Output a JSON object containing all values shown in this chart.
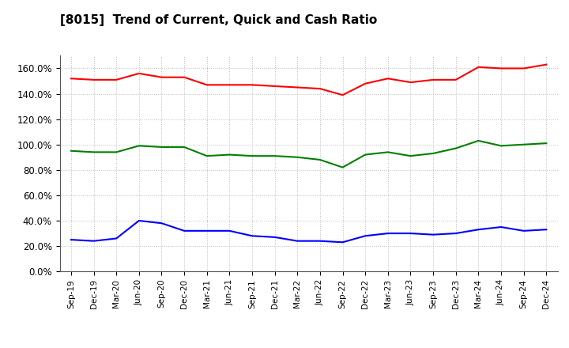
{
  "title": "[8015]  Trend of Current, Quick and Cash Ratio",
  "x_labels": [
    "Sep-19",
    "Dec-19",
    "Mar-20",
    "Jun-20",
    "Sep-20",
    "Dec-20",
    "Mar-21",
    "Jun-21",
    "Sep-21",
    "Dec-21",
    "Mar-22",
    "Jun-22",
    "Sep-22",
    "Dec-22",
    "Mar-23",
    "Jun-23",
    "Sep-23",
    "Dec-23",
    "Mar-24",
    "Jun-24",
    "Sep-24",
    "Dec-24"
  ],
  "current_ratio": [
    152,
    151,
    151,
    156,
    153,
    153,
    147,
    147,
    147,
    146,
    145,
    144,
    139,
    148,
    152,
    149,
    151,
    151,
    161,
    160,
    160,
    163
  ],
  "quick_ratio": [
    95,
    94,
    94,
    99,
    98,
    98,
    91,
    92,
    91,
    91,
    90,
    88,
    82,
    92,
    94,
    91,
    93,
    97,
    103,
    99,
    100,
    101
  ],
  "cash_ratio": [
    25,
    24,
    26,
    40,
    38,
    32,
    32,
    32,
    28,
    27,
    24,
    24,
    23,
    28,
    30,
    30,
    29,
    30,
    33,
    35,
    32,
    33
  ],
  "current_color": "#FF0000",
  "quick_color": "#008000",
  "cash_color": "#0000FF",
  "ylim": [
    0,
    170
  ],
  "yticks": [
    0,
    20,
    40,
    60,
    80,
    100,
    120,
    140,
    160
  ],
  "background_color": "#FFFFFF",
  "grid_color": "#BBBBBB"
}
